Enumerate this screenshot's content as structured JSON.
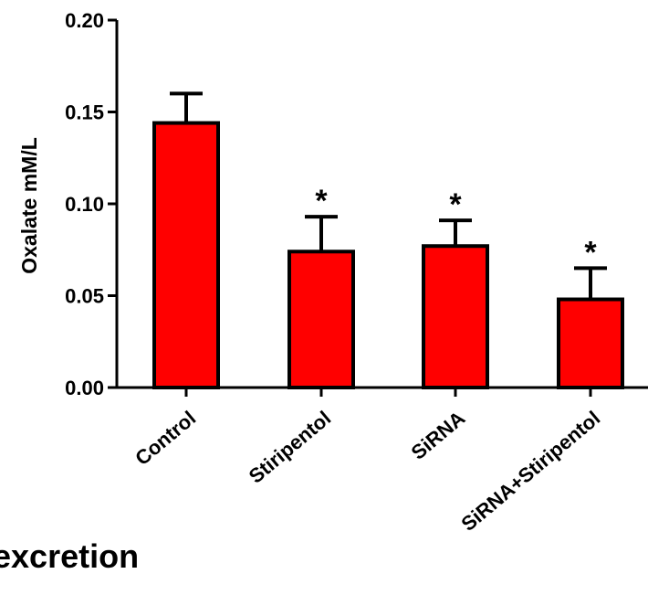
{
  "chart_data": {
    "type": "bar",
    "categories": [
      "Control",
      "Stiripentol",
      "SiRNA",
      "SiRNA+Stiripentol"
    ],
    "values": [
      0.144,
      0.074,
      0.077,
      0.048
    ],
    "errors": [
      0.016,
      0.019,
      0.014,
      0.017
    ],
    "significance": [
      "",
      "*",
      "*",
      "*"
    ],
    "ylabel": "Oxalate mM/L",
    "ylim": [
      0,
      0.2
    ],
    "yticks": [
      "0.00",
      "0.05",
      "0.10",
      "0.15",
      "0.20"
    ],
    "bar_color": "#ff0000",
    "grid": false
  },
  "caption": "excretion"
}
